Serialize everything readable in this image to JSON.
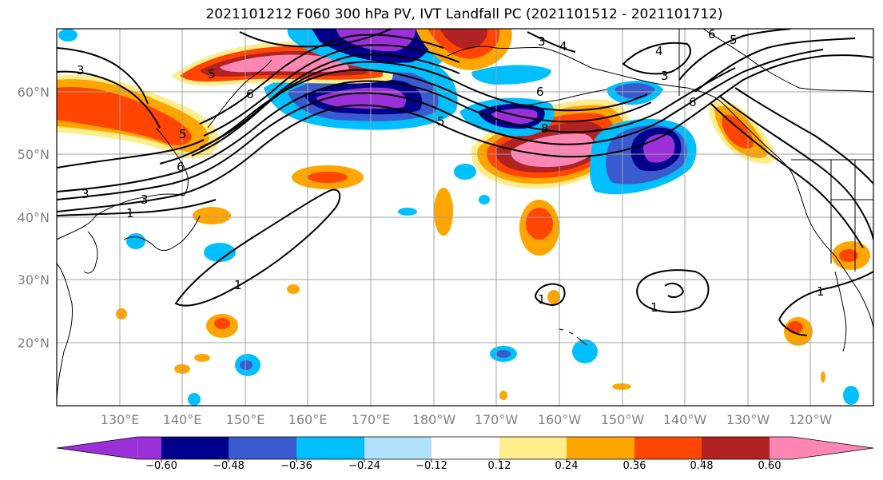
{
  "title": "2021101212 F060 300 hPa PV, IVT Landfall PC (2021101512 - 2021101712)",
  "lat_labels": [
    "60°N",
    "50°N",
    "40°N",
    "30°N",
    "20°N"
  ],
  "lon_labels": [
    "130°E",
    "140°E",
    "150°E",
    "160°E",
    "170°E",
    "180°W",
    "170°W",
    "160°W",
    "150°W",
    "140°W",
    "130°W",
    "120°W"
  ],
  "colorbar": {
    "tick_labels": [
      "−0.60",
      "−0.48",
      "−0.36",
      "−0.24",
      "−0.12",
      "0.12",
      "0.24",
      "0.36",
      "0.48",
      "0.60"
    ],
    "colors": [
      "#9b30d9",
      "#00008b",
      "#3a5bcf",
      "#00bfff",
      "#b0e2ff",
      "#ffffff",
      "#ffec8b",
      "#ffa500",
      "#ff4500",
      "#b22222",
      "#ff86b4"
    ]
  },
  "contour_labels": [
    "1",
    "1",
    "1",
    "1",
    "1",
    "3",
    "3",
    "3",
    "3",
    "3",
    "4",
    "4",
    "5",
    "5",
    "5",
    "5",
    "6",
    "6",
    "6",
    "6",
    "6",
    "8"
  ],
  "colors": {
    "grid": "#a0a0a0",
    "coast": "#000000",
    "contour": "#000000"
  }
}
